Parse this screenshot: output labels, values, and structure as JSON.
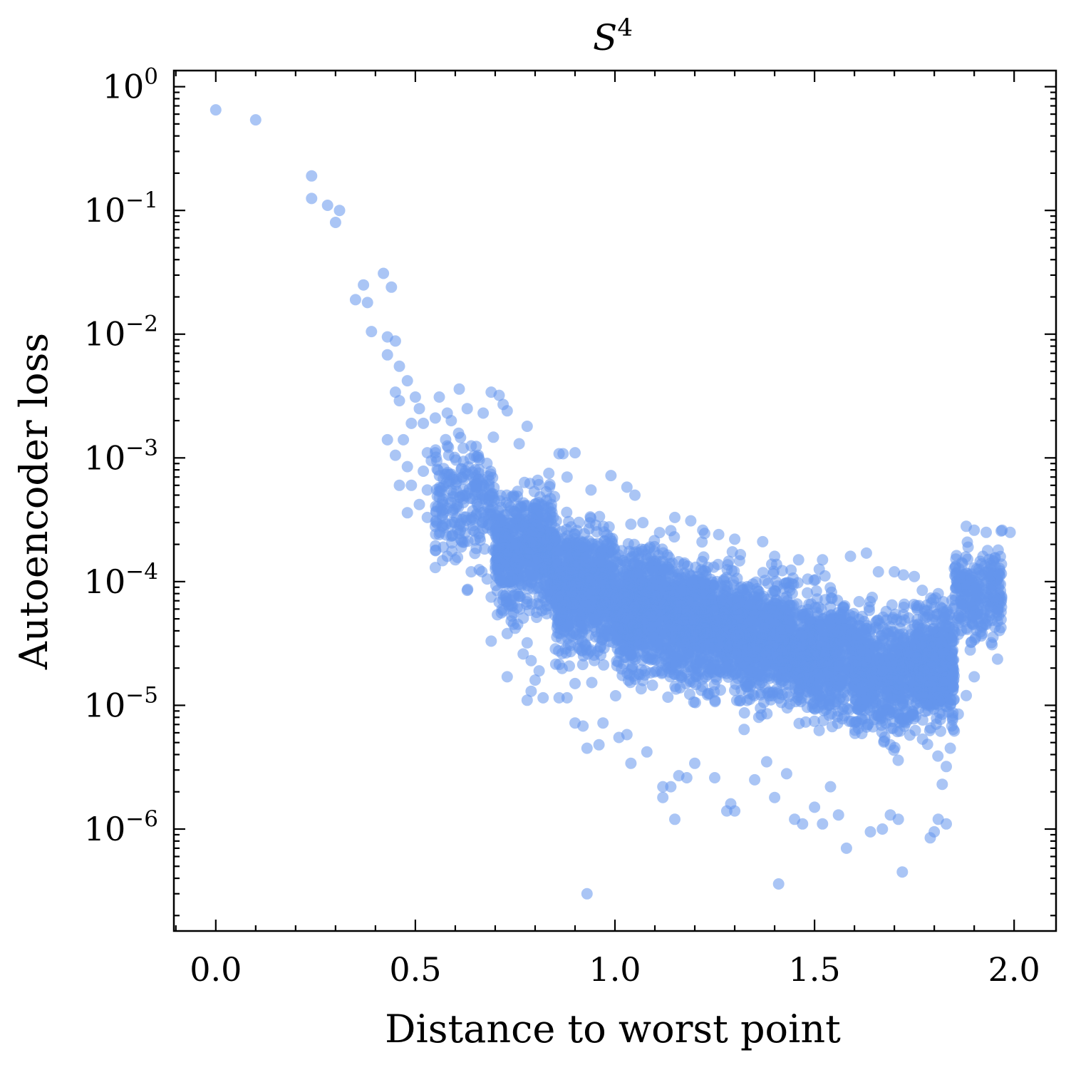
{
  "chart_data": {
    "type": "scatter",
    "title": {
      "base": "S",
      "sup": "4"
    },
    "xlabel": "Distance to worst point",
    "ylabel": "Autoencoder loss",
    "xlim": [
      -0.105,
      2.105
    ],
    "ylim": [
      1.5e-07,
      1.35
    ],
    "yscale": "log",
    "grid": false,
    "legend": null,
    "marker_color": "#6495ED",
    "marker_alpha": 0.55,
    "x_ticks": [
      {
        "value": 0.0,
        "label": "0.0"
      },
      {
        "value": 0.5,
        "label": "0.5"
      },
      {
        "value": 1.0,
        "label": "1.0"
      },
      {
        "value": 1.5,
        "label": "1.5"
      },
      {
        "value": 2.0,
        "label": "2.0"
      }
    ],
    "y_ticks": [
      {
        "value": 1,
        "base": "10",
        "exp": "0"
      },
      {
        "value": 0.1,
        "base": "10",
        "exp": "−1"
      },
      {
        "value": 0.01,
        "base": "10",
        "exp": "−2"
      },
      {
        "value": 0.001,
        "base": "10",
        "exp": "−3"
      },
      {
        "value": 0.0001,
        "base": "10",
        "exp": "−4"
      },
      {
        "value": 1e-05,
        "base": "10",
        "exp": "−5"
      },
      {
        "value": 1e-06,
        "base": "10",
        "exp": "−6"
      }
    ],
    "points": [
      [
        0.0,
        0.65
      ],
      [
        0.1,
        0.54
      ],
      [
        0.24,
        0.19
      ],
      [
        0.24,
        0.125
      ],
      [
        0.28,
        0.11
      ],
      [
        0.31,
        0.1
      ],
      [
        0.3,
        0.08
      ],
      [
        0.42,
        0.031
      ],
      [
        0.37,
        0.025
      ],
      [
        0.44,
        0.024
      ],
      [
        0.35,
        0.019
      ],
      [
        0.38,
        0.018
      ],
      [
        0.39,
        0.0105
      ],
      [
        0.43,
        0.0095
      ],
      [
        0.45,
        0.0088
      ],
      [
        0.43,
        0.0068
      ],
      [
        0.46,
        0.0055
      ],
      [
        0.48,
        0.0042
      ],
      [
        0.45,
        0.0034
      ],
      [
        0.5,
        0.0031
      ],
      [
        0.56,
        0.0031
      ],
      [
        0.61,
        0.0036
      ],
      [
        0.69,
        0.0034
      ],
      [
        0.71,
        0.0032
      ],
      [
        0.72,
        0.0027
      ],
      [
        0.63,
        0.0025
      ],
      [
        0.67,
        0.0023
      ],
      [
        0.73,
        0.0024
      ],
      [
        0.58,
        0.0023
      ],
      [
        0.46,
        0.0029
      ],
      [
        0.51,
        0.0025
      ],
      [
        0.55,
        0.0021
      ],
      [
        0.59,
        0.002
      ],
      [
        0.49,
        0.0019
      ],
      [
        0.52,
        0.0019
      ],
      [
        0.78,
        0.0018
      ],
      [
        0.43,
        0.0014
      ],
      [
        0.47,
        0.0014
      ],
      [
        0.53,
        0.0011
      ],
      [
        0.55,
        0.0011
      ],
      [
        0.58,
        0.00125
      ],
      [
        0.62,
        0.0012
      ],
      [
        0.64,
        0.00125
      ],
      [
        0.76,
        0.0013
      ],
      [
        0.86,
        0.00108
      ],
      [
        0.87,
        0.00108
      ],
      [
        0.9,
        0.0011
      ],
      [
        0.45,
        0.00105
      ],
      [
        0.48,
        0.00085
      ],
      [
        0.52,
        0.00078
      ],
      [
        0.54,
        0.00095
      ],
      [
        0.57,
        0.00068
      ],
      [
        0.49,
        0.0006
      ],
      [
        0.46,
        0.0006
      ],
      [
        0.53,
        0.00055
      ],
      [
        0.56,
        0.00048
      ],
      [
        0.59,
        0.00055
      ],
      [
        0.51,
        0.00042
      ],
      [
        0.48,
        0.00036
      ],
      [
        0.53,
        0.00033
      ],
      [
        0.55,
        0.00028
      ],
      [
        0.56,
        0.00024
      ],
      [
        0.59,
        0.00029
      ],
      [
        0.62,
        0.00028
      ],
      [
        0.57,
        0.00019
      ],
      [
        0.58,
        0.00016
      ],
      [
        0.55,
        0.00013
      ],
      [
        0.6,
        0.00015
      ],
      [
        0.64,
        0.00012
      ],
      [
        0.66,
        0.000125
      ],
      [
        0.68,
        0.000105
      ],
      [
        0.63,
        8.5e-05
      ],
      [
        0.69,
        7.5e-05
      ],
      [
        0.71,
        6.8e-05
      ],
      [
        0.72,
        5.8e-05
      ],
      [
        0.74,
        4.8e-05
      ],
      [
        0.75,
        4.2e-05
      ],
      [
        0.73,
        3.8e-05
      ],
      [
        0.69,
        3.3e-05
      ],
      [
        0.78,
        3.2e-05
      ],
      [
        0.77,
        2.6e-05
      ],
      [
        0.79,
        2.3e-05
      ],
      [
        0.73,
        1.7e-05
      ],
      [
        0.81,
        1.9e-05
      ],
      [
        0.8,
        1.6e-05
      ],
      [
        0.79,
        1.3e-05
      ],
      [
        0.78,
        1.1e-05
      ],
      [
        0.82,
        1.15e-05
      ],
      [
        0.86,
        1.15e-05
      ],
      [
        0.88,
        1.15e-05
      ],
      [
        0.9,
        1.5e-05
      ],
      [
        0.9,
        7.2e-06
      ],
      [
        0.92,
        6.8e-06
      ],
      [
        0.93,
        4.5e-06
      ],
      [
        0.96,
        4.8e-06
      ],
      [
        0.97,
        7.2e-06
      ],
      [
        1.01,
        5.5e-06
      ],
      [
        1.03,
        5.8e-06
      ],
      [
        1.04,
        3.4e-06
      ],
      [
        1.08,
        4.2e-06
      ],
      [
        1.12,
        2.2e-06
      ],
      [
        1.12,
        1.8e-06
      ],
      [
        1.14,
        2.2e-06
      ],
      [
        1.16,
        2.7e-06
      ],
      [
        1.15,
        1.2e-06
      ],
      [
        1.18,
        2.6e-06
      ],
      [
        1.2,
        3.4e-06
      ],
      [
        1.25,
        2.6e-06
      ],
      [
        1.28,
        1.4e-06
      ],
      [
        1.29,
        1.6e-06
      ],
      [
        1.3,
        1.4e-06
      ],
      [
        1.35,
        2.5e-06
      ],
      [
        1.38,
        3.5e-06
      ],
      [
        1.4,
        1.8e-06
      ],
      [
        1.43,
        2.8e-06
      ],
      [
        1.45,
        1.2e-06
      ],
      [
        1.47,
        1.1e-06
      ],
      [
        1.5,
        1.5e-06
      ],
      [
        1.52,
        1.1e-06
      ],
      [
        1.54,
        2.2e-06
      ],
      [
        1.56,
        1.3e-06
      ],
      [
        1.58,
        7e-07
      ],
      [
        1.64,
        9.5e-07
      ],
      [
        1.67,
        1e-06
      ],
      [
        1.69,
        1.3e-06
      ],
      [
        1.71,
        1.2e-06
      ],
      [
        1.72,
        4.5e-07
      ],
      [
        1.79,
        8.5e-07
      ],
      [
        1.8,
        9.5e-07
      ],
      [
        1.81,
        1.2e-06
      ],
      [
        1.83,
        1.1e-06
      ],
      [
        0.93,
        3e-07
      ],
      [
        1.41,
        3.6e-07
      ],
      [
        1.88,
        0.00028
      ],
      [
        1.9,
        0.00026
      ],
      [
        1.93,
        0.00025
      ],
      [
        1.97,
        0.00026
      ],
      [
        1.99,
        0.00025
      ],
      [
        1.96,
        0.00018
      ],
      [
        1.94,
        0.00014
      ],
      [
        1.95,
        7.5e-05
      ],
      [
        1.93,
        4.5e-05
      ],
      [
        1.92,
        3.8e-05
      ],
      [
        1.89,
        2.8e-05
      ],
      [
        1.9,
        1.7e-05
      ],
      [
        1.88,
        1.2e-05
      ],
      [
        1.86,
        8.5e-06
      ],
      [
        1.85,
        6.2e-06
      ],
      [
        1.84,
        4.5e-06
      ],
      [
        1.83,
        3.2e-06
      ],
      [
        1.82,
        2.3e-06
      ],
      [
        0.88,
        0.0007
      ],
      [
        0.94,
        0.00055
      ],
      [
        0.99,
        0.00072
      ],
      [
        1.03,
        0.00058
      ],
      [
        1.05,
        0.0005
      ],
      [
        1.07,
        0.0003
      ],
      [
        1.15,
        0.00033
      ],
      [
        1.19,
        0.00031
      ],
      [
        1.22,
        0.00026
      ],
      [
        1.26,
        0.00024
      ],
      [
        1.3,
        0.00022
      ],
      [
        1.37,
        0.00021
      ],
      [
        1.4,
        0.00016
      ],
      [
        1.46,
        0.00015
      ],
      [
        1.52,
        0.00015
      ],
      [
        1.59,
        0.00016
      ],
      [
        1.63,
        0.00017
      ],
      [
        1.66,
        0.00012
      ],
      [
        1.7,
        0.00012
      ],
      [
        1.75,
        0.00011
      ],
      [
        1.77,
        8.5e-05
      ],
      [
        1.81,
        8e-05
      ]
    ],
    "density_bands": [
      {
        "x0": 0.55,
        "x1": 0.7,
        "center": 0.00045,
        "spread": 0.6,
        "count": 220
      },
      {
        "x0": 0.7,
        "x1": 0.85,
        "center": 0.00018,
        "spread": 0.6,
        "count": 650
      },
      {
        "x0": 0.85,
        "x1": 1.0,
        "center": 9e-05,
        "spread": 0.62,
        "count": 800
      },
      {
        "x0": 1.0,
        "x1": 1.15,
        "center": 6e-05,
        "spread": 0.62,
        "count": 800
      },
      {
        "x0": 1.15,
        "x1": 1.3,
        "center": 4.5e-05,
        "spread": 0.6,
        "count": 760
      },
      {
        "x0": 1.3,
        "x1": 1.45,
        "center": 3.5e-05,
        "spread": 0.6,
        "count": 700
      },
      {
        "x0": 1.45,
        "x1": 1.6,
        "center": 2.5e-05,
        "spread": 0.6,
        "count": 640
      },
      {
        "x0": 1.6,
        "x1": 1.75,
        "center": 1.8e-05,
        "spread": 0.6,
        "count": 600
      },
      {
        "x0": 1.75,
        "x1": 1.85,
        "center": 2.2e-05,
        "spread": 0.62,
        "count": 480
      },
      {
        "x0": 1.85,
        "x1": 1.97,
        "center": 8e-05,
        "spread": 0.45,
        "count": 260
      }
    ]
  }
}
